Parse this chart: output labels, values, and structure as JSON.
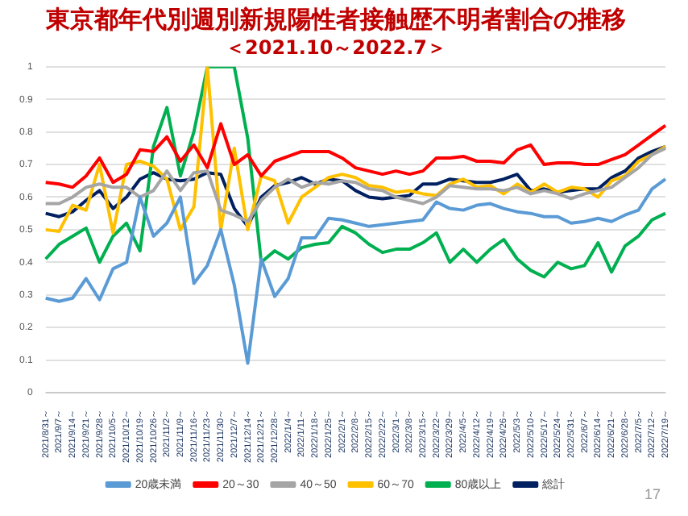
{
  "chart_data": {
    "type": "line",
    "title": "東京都年代別週別新規陽性者接触歴不明者割合の推移",
    "subtitle": "＜2021.10～2022.7＞",
    "categories": [
      "2021/8/31～",
      "2021/9/7～",
      "2021/9/14～",
      "2021/9/21～",
      "2021/9/28～",
      "2021/10/5～",
      "2021/10/12～",
      "2021/10/19～",
      "2021/10/26～",
      "2021/11/2～",
      "2021/11/9～",
      "2021/11/16～",
      "2021/11/23～",
      "2021/11/30～",
      "2021/12/7～",
      "2021/12/14～",
      "2021/12/21～",
      "2021/12/28～",
      "2022/1/4～",
      "2022/1/11～",
      "2022/1/18～",
      "2022/1/25～",
      "2022/2/1～",
      "2022/2/8～",
      "2022/2/15～",
      "2022/2/22～",
      "2022/3/1～",
      "2022/3/8～",
      "2022/3/15～",
      "2022/3/22～",
      "2022/3/29～",
      "2022/4/5～",
      "2022/4/12～",
      "2022/4/19～",
      "2022/4/26～",
      "2022/5/3～",
      "2022/5/10～",
      "2022/5/17～",
      "2022/5/24～",
      "2022/5/31～",
      "2022/6/7～",
      "2022/6/14～",
      "2022/6/21～",
      "2022/6/28～",
      "2022/7/5～",
      "2022/7/12～",
      "2022/7/19～"
    ],
    "series": [
      {
        "name": "20歳未満",
        "color": "#5b9bd5",
        "values": [
          0.29,
          0.28,
          0.29,
          0.35,
          0.285,
          0.38,
          0.4,
          0.6,
          0.48,
          0.52,
          0.6,
          0.335,
          0.39,
          0.5,
          0.33,
          0.09,
          0.41,
          0.295,
          0.35,
          0.475,
          0.475,
          0.535,
          0.53,
          0.52,
          0.51,
          0.515,
          0.52,
          0.525,
          0.53,
          0.585,
          0.565,
          0.56,
          0.575,
          0.58,
          0.565,
          0.555,
          0.55,
          0.54,
          0.54,
          0.52,
          0.525,
          0.535,
          0.525,
          0.545,
          0.56,
          0.625,
          0.655
        ]
      },
      {
        "name": "20～30",
        "color": "#ff0000",
        "values": [
          0.645,
          0.64,
          0.63,
          0.665,
          0.72,
          0.645,
          0.67,
          0.745,
          0.74,
          0.785,
          0.71,
          0.76,
          0.69,
          0.825,
          0.7,
          0.73,
          0.665,
          0.71,
          0.725,
          0.74,
          0.74,
          0.74,
          0.72,
          0.69,
          0.68,
          0.67,
          0.68,
          0.67,
          0.68,
          0.72,
          0.72,
          0.725,
          0.71,
          0.71,
          0.705,
          0.745,
          0.76,
          0.7,
          0.705,
          0.705,
          0.7,
          0.7,
          0.715,
          0.73,
          0.76,
          0.79,
          0.82
        ]
      },
      {
        "name": "40～50",
        "color": "#a5a5a5",
        "values": [
          0.58,
          0.58,
          0.6,
          0.63,
          0.64,
          0.63,
          0.63,
          0.6,
          0.62,
          0.68,
          0.62,
          0.675,
          0.68,
          0.56,
          0.545,
          0.525,
          0.59,
          0.63,
          0.655,
          0.63,
          0.645,
          0.64,
          0.65,
          0.645,
          0.625,
          0.62,
          0.6,
          0.59,
          0.58,
          0.6,
          0.635,
          0.63,
          0.625,
          0.625,
          0.62,
          0.63,
          0.61,
          0.62,
          0.61,
          0.595,
          0.61,
          0.62,
          0.63,
          0.66,
          0.69,
          0.73,
          0.75
        ]
      },
      {
        "name": "60～70",
        "color": "#ffc000",
        "values": [
          0.5,
          0.495,
          0.575,
          0.56,
          0.7,
          0.49,
          0.7,
          0.71,
          0.695,
          0.655,
          0.5,
          0.57,
          1.0,
          0.5,
          0.75,
          0.5,
          0.665,
          0.65,
          0.52,
          0.6,
          0.63,
          0.66,
          0.67,
          0.66,
          0.635,
          0.63,
          0.615,
          0.62,
          0.61,
          0.605,
          0.64,
          0.655,
          0.63,
          0.635,
          0.61,
          0.64,
          0.615,
          0.64,
          0.615,
          0.63,
          0.625,
          0.6,
          0.65,
          0.665,
          0.71,
          0.73,
          0.755
        ]
      },
      {
        "name": "80歳以上",
        "color": "#00b050",
        "values": [
          0.41,
          0.455,
          0.48,
          0.505,
          0.4,
          0.48,
          0.52,
          0.435,
          0.755,
          0.875,
          0.665,
          0.8,
          1.0,
          1.0,
          1.0,
          0.78,
          0.4,
          0.435,
          0.41,
          0.445,
          0.455,
          0.46,
          0.51,
          0.49,
          0.455,
          0.43,
          0.44,
          0.44,
          0.46,
          0.49,
          0.4,
          0.44,
          0.4,
          0.44,
          0.47,
          0.41,
          0.375,
          0.355,
          0.4,
          0.38,
          0.39,
          0.46,
          0.37,
          0.45,
          0.48,
          0.53,
          0.55
        ]
      },
      {
        "name": "総計",
        "color": "#002060",
        "values": [
          0.55,
          0.54,
          0.555,
          0.59,
          0.62,
          0.565,
          0.6,
          0.655,
          0.675,
          0.655,
          0.65,
          0.655,
          0.675,
          0.67,
          0.565,
          0.51,
          0.6,
          0.635,
          0.645,
          0.66,
          0.64,
          0.655,
          0.65,
          0.62,
          0.6,
          0.595,
          0.6,
          0.605,
          0.64,
          0.64,
          0.655,
          0.65,
          0.645,
          0.645,
          0.655,
          0.67,
          0.62,
          0.625,
          0.615,
          0.62,
          0.625,
          0.625,
          0.66,
          0.68,
          0.72,
          0.74,
          0.755
        ]
      }
    ],
    "ylim": [
      0,
      1
    ],
    "yticks": [
      0,
      0.1,
      0.2,
      0.3,
      0.4,
      0.5,
      0.6,
      0.7,
      0.8,
      0.9,
      1
    ],
    "grid": "y",
    "legend": "bottom",
    "marker": "none",
    "line_style": "solid",
    "annotations": [
      "17"
    ]
  }
}
